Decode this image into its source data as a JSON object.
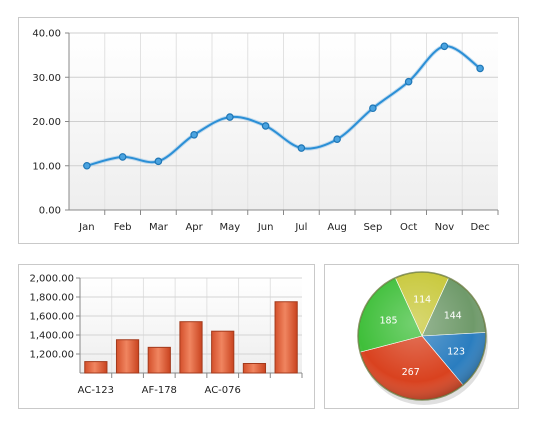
{
  "chart_data": [
    {
      "type": "line",
      "categories": [
        "Jan",
        "Feb",
        "Mar",
        "Apr",
        "May",
        "Jun",
        "Jul",
        "Aug",
        "Sep",
        "Oct",
        "Nov",
        "Dec"
      ],
      "values": [
        10,
        12,
        11,
        17,
        21,
        19,
        14,
        16,
        23,
        29,
        37,
        32
      ],
      "ylim": [
        0,
        40
      ],
      "yticks": [
        "0.00",
        "10.00",
        "20.00",
        "30.00",
        "40.00"
      ],
      "grid": true,
      "colors": {
        "line": "#2b8fd6",
        "marker": "#1f76b5"
      }
    },
    {
      "type": "bar",
      "categories": [
        "AC-123",
        "",
        "AF-178",
        "",
        "AC-076",
        "",
        ""
      ],
      "values": [
        1120,
        1350,
        1270,
        1540,
        1440,
        1100,
        1750
      ],
      "ylim": [
        1000,
        2000
      ],
      "yticks": [
        "1,200.00",
        "1,400.00",
        "1,600.00",
        "1,800.00",
        "2,000.00"
      ],
      "grid": true,
      "colors": {
        "bar": "#e8623c",
        "bar_edge": "#a33a1c"
      }
    },
    {
      "type": "pie",
      "slices": [
        {
          "label": "114",
          "value": 114,
          "color": "#c8c83a"
        },
        {
          "label": "144",
          "value": 144,
          "color": "#6f9a6a"
        },
        {
          "label": "123",
          "value": 123,
          "color": "#2a7dbf"
        },
        {
          "label": "267",
          "value": 267,
          "color": "#d9421f"
        },
        {
          "label": "185",
          "value": 185,
          "color": "#3fbf3a"
        }
      ]
    }
  ]
}
